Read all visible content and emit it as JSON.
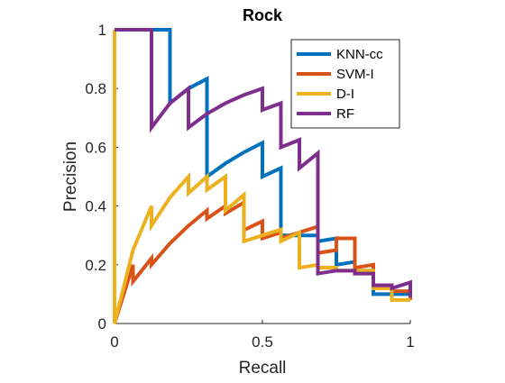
{
  "chart_data": {
    "type": "line",
    "title": "Rock",
    "xlabel": "Recall",
    "ylabel": "Precision",
    "xlim": [
      0,
      1
    ],
    "ylim": [
      0,
      1
    ],
    "xticks": [
      0,
      0.5,
      1
    ],
    "yticks": [
      0,
      0.2,
      0.4,
      0.6,
      0.8,
      1
    ],
    "xtick_labels": [
      "0",
      "0.5",
      "1"
    ],
    "ytick_labels": [
      "0",
      "0.2",
      "0.4",
      "0.6",
      "0.8",
      "1"
    ],
    "grid": false,
    "legend_position": "top-right",
    "series": [
      {
        "name": "KNN-cc",
        "color": "#0072BD",
        "points": [
          [
            0,
            1
          ],
          [
            0.1875,
            1
          ],
          [
            0.1875,
            0.75
          ],
          [
            0.25,
            0.8
          ],
          [
            0.3125,
            0.833
          ],
          [
            0.3125,
            0.5
          ],
          [
            0.375,
            0.545
          ],
          [
            0.4375,
            0.583
          ],
          [
            0.5,
            0.615
          ],
          [
            0.5,
            0.5
          ],
          [
            0.5625,
            0.529
          ],
          [
            0.5625,
            0.3
          ],
          [
            0.625,
            0.3
          ],
          [
            0.6875,
            0.3
          ],
          [
            0.6875,
            0.28
          ],
          [
            0.75,
            0.29
          ],
          [
            0.75,
            0.2
          ],
          [
            0.8125,
            0.21
          ],
          [
            0.8125,
            0.18
          ],
          [
            0.875,
            0.18
          ],
          [
            0.875,
            0.1
          ],
          [
            0.9375,
            0.1
          ],
          [
            0.9375,
            0.1
          ],
          [
            1,
            0.1
          ]
        ]
      },
      {
        "name": "SVM-I",
        "color": "#D95319",
        "points": [
          [
            0,
            0
          ],
          [
            0.0625,
            0.2
          ],
          [
            0.0625,
            0.143
          ],
          [
            0.125,
            0.222
          ],
          [
            0.125,
            0.2
          ],
          [
            0.1875,
            0.273
          ],
          [
            0.25,
            0.333
          ],
          [
            0.3125,
            0.385
          ],
          [
            0.3125,
            0.357
          ],
          [
            0.375,
            0.4
          ],
          [
            0.375,
            0.375
          ],
          [
            0.4375,
            0.412
          ],
          [
            0.4375,
            0.318
          ],
          [
            0.5,
            0.348
          ],
          [
            0.5,
            0.29
          ],
          [
            0.5625,
            0.31
          ],
          [
            0.5625,
            0.29
          ],
          [
            0.6875,
            0.33
          ],
          [
            0.6875,
            0.24
          ],
          [
            0.75,
            0.25
          ],
          [
            0.75,
            0.29
          ],
          [
            0.8125,
            0.29
          ],
          [
            0.8125,
            0.19
          ],
          [
            0.875,
            0.2
          ],
          [
            0.875,
            0.13
          ],
          [
            0.9375,
            0.13
          ],
          [
            0.9375,
            0.11
          ],
          [
            1,
            0.11
          ],
          [
            1,
            0.08
          ]
        ]
      },
      {
        "name": "D-I",
        "color": "#EDB120",
        "points": [
          [
            0,
            1
          ],
          [
            0,
            0.0
          ],
          [
            0.0625,
            0.25
          ],
          [
            0.125,
            0.4
          ],
          [
            0.125,
            0.333
          ],
          [
            0.1875,
            0.429
          ],
          [
            0.25,
            0.5
          ],
          [
            0.25,
            0.444
          ],
          [
            0.3125,
            0.5
          ],
          [
            0.3125,
            0.455
          ],
          [
            0.375,
            0.5
          ],
          [
            0.375,
            0.385
          ],
          [
            0.4375,
            0.438
          ],
          [
            0.4375,
            0.28
          ],
          [
            0.5,
            0.3
          ],
          [
            0.5625,
            0.32
          ],
          [
            0.5625,
            0.28
          ],
          [
            0.625,
            0.31
          ],
          [
            0.625,
            0.19
          ],
          [
            0.6875,
            0.2
          ],
          [
            0.6875,
            0.19
          ],
          [
            0.75,
            0.19
          ],
          [
            0.75,
            0.18
          ],
          [
            0.875,
            0.18
          ],
          [
            0.875,
            0.12
          ],
          [
            0.9375,
            0.12
          ],
          [
            0.9375,
            0.08
          ],
          [
            1,
            0.08
          ]
        ]
      },
      {
        "name": "RF",
        "color": "#7E2F8E",
        "points": [
          [
            0,
            1
          ],
          [
            0.125,
            1
          ],
          [
            0.125,
            0.667
          ],
          [
            0.1875,
            0.75
          ],
          [
            0.25,
            0.8
          ],
          [
            0.25,
            0.667
          ],
          [
            0.3125,
            0.714
          ],
          [
            0.375,
            0.75
          ],
          [
            0.4375,
            0.778
          ],
          [
            0.5,
            0.8
          ],
          [
            0.5,
            0.727
          ],
          [
            0.5625,
            0.75
          ],
          [
            0.5625,
            0.6
          ],
          [
            0.625,
            0.625
          ],
          [
            0.625,
            0.529
          ],
          [
            0.6875,
            0.58
          ],
          [
            0.6875,
            0.17
          ],
          [
            0.75,
            0.18
          ],
          [
            0.8125,
            0.18
          ],
          [
            0.8125,
            0.17
          ],
          [
            0.875,
            0.17
          ],
          [
            0.875,
            0.13
          ],
          [
            0.9375,
            0.13
          ],
          [
            0.9375,
            0.12
          ],
          [
            1,
            0.14
          ],
          [
            1,
            0.09
          ]
        ]
      }
    ]
  }
}
